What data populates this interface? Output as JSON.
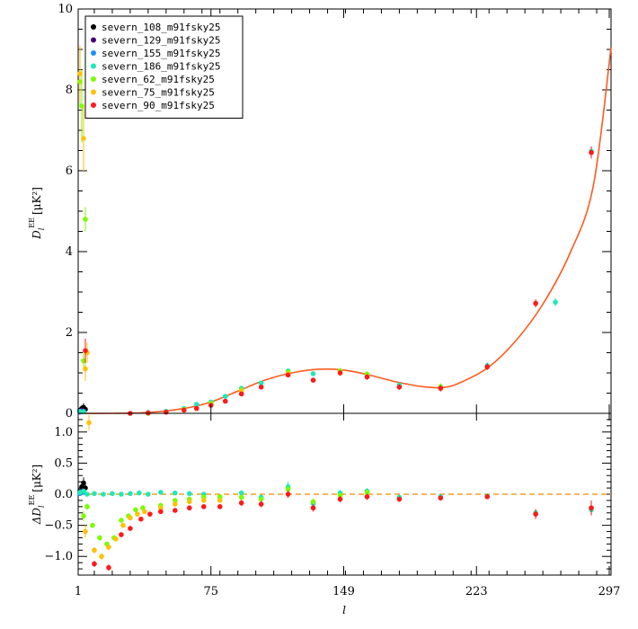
{
  "chart_data": {
    "type": "scatter",
    "xlabel": "l",
    "legend_position": "top-left",
    "x_ticks": [
      1,
      75,
      149,
      223,
      297
    ],
    "x_tick_labels": [
      "1",
      "75",
      "149",
      "223",
      "297"
    ],
    "xlim": [
      1,
      298
    ],
    "top_panel": {
      "ylabel": "D_l^EE [μK²]",
      "ylabel_parts": {
        "D": "D",
        "l": "l",
        "EE": "EE",
        "unit": "[μK²]"
      },
      "ylim": [
        0,
        10
      ],
      "y_ticks": [
        0,
        2,
        4,
        6,
        8,
        10
      ],
      "y_tick_labels": [
        "0",
        "2",
        "4",
        "6",
        "8",
        "10"
      ],
      "model_curve_color": "#ff5a1f",
      "model_curve": [
        [
          2,
          0.0
        ],
        [
          20,
          0.0
        ],
        [
          40,
          0.02
        ],
        [
          60,
          0.12
        ],
        [
          75,
          0.28
        ],
        [
          90,
          0.55
        ],
        [
          105,
          0.82
        ],
        [
          120,
          1.0
        ],
        [
          135,
          1.09
        ],
        [
          149,
          1.07
        ],
        [
          163,
          0.95
        ],
        [
          178,
          0.78
        ],
        [
          193,
          0.66
        ],
        [
          205,
          0.64
        ],
        [
          215,
          0.78
        ],
        [
          230,
          1.15
        ],
        [
          245,
          1.8
        ],
        [
          260,
          2.7
        ],
        [
          275,
          3.95
        ],
        [
          288,
          5.6
        ],
        [
          298,
          9.05
        ]
      ]
    },
    "bottom_panel": {
      "ylabel": "ΔD_l^EE [μK²]",
      "ylabel_parts": {
        "D": "ΔD",
        "l": "l",
        "EE": "EE",
        "unit": "[μK²]"
      },
      "ylim": [
        -1.3,
        1.3
      ],
      "y_ticks": [
        -1.0,
        -0.5,
        0.0,
        0.5,
        1.0
      ],
      "y_tick_labels": [
        "−1.0",
        "−0.5",
        "0.0",
        "0.5",
        "1.0"
      ],
      "reference_line": {
        "y": 0,
        "color": "#f0a020",
        "style": "dashed"
      }
    },
    "series": [
      {
        "name": "severn_108_m91fsky25",
        "color": "#000000",
        "top": [
          [
            2,
            0.08,
            0.06
          ],
          [
            3,
            0.12,
            0.08
          ],
          [
            4,
            0.15,
            0.1
          ],
          [
            5,
            0.1,
            0.08
          ]
        ],
        "bottom": [
          [
            2,
            0.05,
            0.05
          ],
          [
            3,
            0.12,
            0.07
          ],
          [
            4,
            0.18,
            0.09
          ],
          [
            5,
            0.1,
            0.06
          ]
        ]
      },
      {
        "name": "severn_129_m91fsky25",
        "color": "#4b0082",
        "top": [
          [
            2,
            0.05,
            0.05
          ],
          [
            3,
            0.08,
            0.06
          ]
        ],
        "bottom": [
          [
            2,
            0.02,
            0.04
          ],
          [
            3,
            0.05,
            0.05
          ]
        ]
      },
      {
        "name": "severn_155_m91fsky25",
        "color": "#1e90ff",
        "top": [
          [
            2,
            0.03,
            0.04
          ],
          [
            4,
            0.05,
            0.04
          ]
        ],
        "bottom": [
          [
            2,
            0.01,
            0.03
          ],
          [
            4,
            0.03,
            0.03
          ]
        ]
      },
      {
        "name": "severn_186_m91fsky25",
        "color": "#1de9b6",
        "top": [
          [
            2,
            0.05,
            0.05
          ],
          [
            4,
            0.04,
            0.04
          ],
          [
            30,
            0.0,
            0.0
          ],
          [
            40,
            0.02,
            0.01
          ],
          [
            50,
            0.05,
            0.02
          ],
          [
            60,
            0.12,
            0.03
          ],
          [
            67,
            0.22,
            0.03
          ],
          [
            75,
            0.28,
            0.03
          ],
          [
            83,
            0.42,
            0.04
          ],
          [
            92,
            0.62,
            0.05
          ],
          [
            103,
            0.75,
            0.05
          ],
          [
            118,
            1.05,
            0.06
          ],
          [
            132,
            0.98,
            0.06
          ],
          [
            147,
            1.05,
            0.07
          ],
          [
            162,
            0.95,
            0.07
          ],
          [
            180,
            0.7,
            0.07
          ],
          [
            203,
            0.65,
            0.08
          ],
          [
            229,
            1.18,
            0.08
          ],
          [
            267,
            2.75,
            0.1
          ],
          [
            287,
            6.48,
            0.12
          ]
        ],
        "bottom": [
          [
            2,
            0.03,
            0.05
          ],
          [
            4,
            0.05,
            0.04
          ],
          [
            6,
            0.0,
            0.03
          ],
          [
            10,
            0.01,
            0.02
          ],
          [
            15,
            0.0,
            0.02
          ],
          [
            20,
            0.01,
            0.02
          ],
          [
            25,
            0.0,
            0.02
          ],
          [
            30,
            0.01,
            0.02
          ],
          [
            35,
            0.02,
            0.02
          ],
          [
            40,
            0.0,
            0.02
          ],
          [
            47,
            0.03,
            0.02
          ],
          [
            55,
            0.02,
            0.02
          ],
          [
            63,
            0.01,
            0.02
          ],
          [
            71,
            0.0,
            0.02
          ],
          [
            80,
            -0.05,
            0.03
          ],
          [
            92,
            0.02,
            0.03
          ],
          [
            103,
            -0.05,
            0.04
          ],
          [
            118,
            0.12,
            0.08
          ],
          [
            132,
            -0.15,
            0.06
          ],
          [
            147,
            0.02,
            0.05
          ],
          [
            162,
            0.05,
            0.05
          ],
          [
            180,
            -0.05,
            0.04
          ],
          [
            203,
            -0.04,
            0.04
          ],
          [
            229,
            -0.03,
            0.04
          ],
          [
            256,
            -0.3,
            0.06
          ],
          [
            287,
            -0.25,
            0.08
          ]
        ]
      },
      {
        "name": "severn_62_m91fsky25",
        "color": "#7cfc00",
        "top": [
          [
            2,
            8.2,
            0.6
          ],
          [
            3,
            7.6,
            0.9
          ],
          [
            4,
            1.3,
            0.25
          ],
          [
            5,
            4.8,
            0.3
          ],
          [
            40,
            0.0,
            0.01
          ],
          [
            60,
            0.1,
            0.02
          ],
          [
            75,
            0.25,
            0.03
          ],
          [
            92,
            0.58,
            0.05
          ],
          [
            118,
            1.02,
            0.06
          ],
          [
            147,
            1.05,
            0.07
          ],
          [
            162,
            0.97,
            0.07
          ],
          [
            203,
            0.66,
            0.08
          ]
        ],
        "bottom": [
          [
            4,
            -0.35,
            0.08
          ],
          [
            6,
            -0.2,
            0.05
          ],
          [
            9,
            -0.5,
            0.04
          ],
          [
            13,
            -0.7,
            0.04
          ],
          [
            17,
            -0.8,
            0.04
          ],
          [
            21,
            -0.7,
            0.04
          ],
          [
            25,
            -0.42,
            0.04
          ],
          [
            29,
            -0.35,
            0.03
          ],
          [
            33,
            -0.25,
            0.03
          ],
          [
            37,
            -0.22,
            0.03
          ],
          [
            47,
            -0.18,
            0.03
          ],
          [
            55,
            -0.1,
            0.03
          ],
          [
            63,
            -0.08,
            0.03
          ],
          [
            71,
            -0.05,
            0.03
          ],
          [
            80,
            -0.04,
            0.03
          ],
          [
            92,
            -0.05,
            0.03
          ],
          [
            103,
            -0.08,
            0.04
          ],
          [
            118,
            0.08,
            0.06
          ],
          [
            132,
            -0.12,
            0.05
          ],
          [
            147,
            -0.02,
            0.05
          ],
          [
            162,
            0.03,
            0.05
          ]
        ]
      },
      {
        "name": "severn_75_m91fsky25",
        "color": "#ffc107",
        "top": [
          [
            2,
            8.4,
            0.7
          ],
          [
            4,
            6.8,
            0.8
          ],
          [
            5,
            1.1,
            0.3
          ],
          [
            6,
            1.5,
            0.25
          ],
          [
            60,
            0.08,
            0.02
          ],
          [
            75,
            0.2,
            0.03
          ],
          [
            92,
            0.55,
            0.05
          ],
          [
            118,
            0.98,
            0.06
          ]
        ],
        "bottom": [
          [
            5,
            -0.6,
            0.1
          ],
          [
            7,
            1.15,
            0.12
          ],
          [
            10,
            -0.9,
            0.05
          ],
          [
            14,
            -1.0,
            0.05
          ],
          [
            18,
            -0.85,
            0.05
          ],
          [
            22,
            -0.72,
            0.04
          ],
          [
            26,
            -0.5,
            0.04
          ],
          [
            30,
            -0.38,
            0.03
          ],
          [
            34,
            -0.32,
            0.03
          ],
          [
            38,
            -0.28,
            0.03
          ],
          [
            47,
            -0.22,
            0.03
          ],
          [
            55,
            -0.16,
            0.03
          ],
          [
            63,
            -0.12,
            0.03
          ],
          [
            71,
            -0.1,
            0.03
          ],
          [
            80,
            -0.1,
            0.03
          ]
        ]
      },
      {
        "name": "severn_90_m91fsky25",
        "color": "#ff1a1a",
        "top": [
          [
            5,
            1.55,
            0.3
          ],
          [
            30,
            0.0,
            0.01
          ],
          [
            40,
            0.01,
            0.01
          ],
          [
            50,
            0.03,
            0.02
          ],
          [
            60,
            0.08,
            0.02
          ],
          [
            67,
            0.12,
            0.03
          ],
          [
            75,
            0.2,
            0.03
          ],
          [
            83,
            0.3,
            0.04
          ],
          [
            92,
            0.48,
            0.05
          ],
          [
            103,
            0.65,
            0.05
          ],
          [
            118,
            0.95,
            0.06
          ],
          [
            132,
            0.82,
            0.06
          ],
          [
            147,
            1.0,
            0.07
          ],
          [
            162,
            0.9,
            0.07
          ],
          [
            180,
            0.65,
            0.07
          ],
          [
            203,
            0.62,
            0.08
          ],
          [
            229,
            1.15,
            0.08
          ],
          [
            256,
            2.72,
            0.1
          ],
          [
            287,
            6.45,
            0.15
          ]
        ],
        "bottom": [
          [
            10,
            -1.12,
            0.05
          ],
          [
            18,
            -1.18,
            0.05
          ],
          [
            25,
            -0.65,
            0.04
          ],
          [
            30,
            -0.55,
            0.04
          ],
          [
            36,
            -0.4,
            0.03
          ],
          [
            41,
            -0.32,
            0.03
          ],
          [
            47,
            -0.28,
            0.03
          ],
          [
            55,
            -0.26,
            0.03
          ],
          [
            63,
            -0.22,
            0.03
          ],
          [
            71,
            -0.2,
            0.03
          ],
          [
            80,
            -0.2,
            0.03
          ],
          [
            92,
            -0.14,
            0.05
          ],
          [
            103,
            -0.16,
            0.05
          ],
          [
            118,
            0.0,
            0.06
          ],
          [
            132,
            -0.22,
            0.06
          ],
          [
            147,
            -0.08,
            0.05
          ],
          [
            162,
            -0.04,
            0.05
          ],
          [
            180,
            -0.08,
            0.04
          ],
          [
            203,
            -0.06,
            0.04
          ],
          [
            229,
            -0.04,
            0.04
          ],
          [
            256,
            -0.32,
            0.08
          ],
          [
            287,
            -0.22,
            0.12
          ]
        ]
      }
    ]
  }
}
